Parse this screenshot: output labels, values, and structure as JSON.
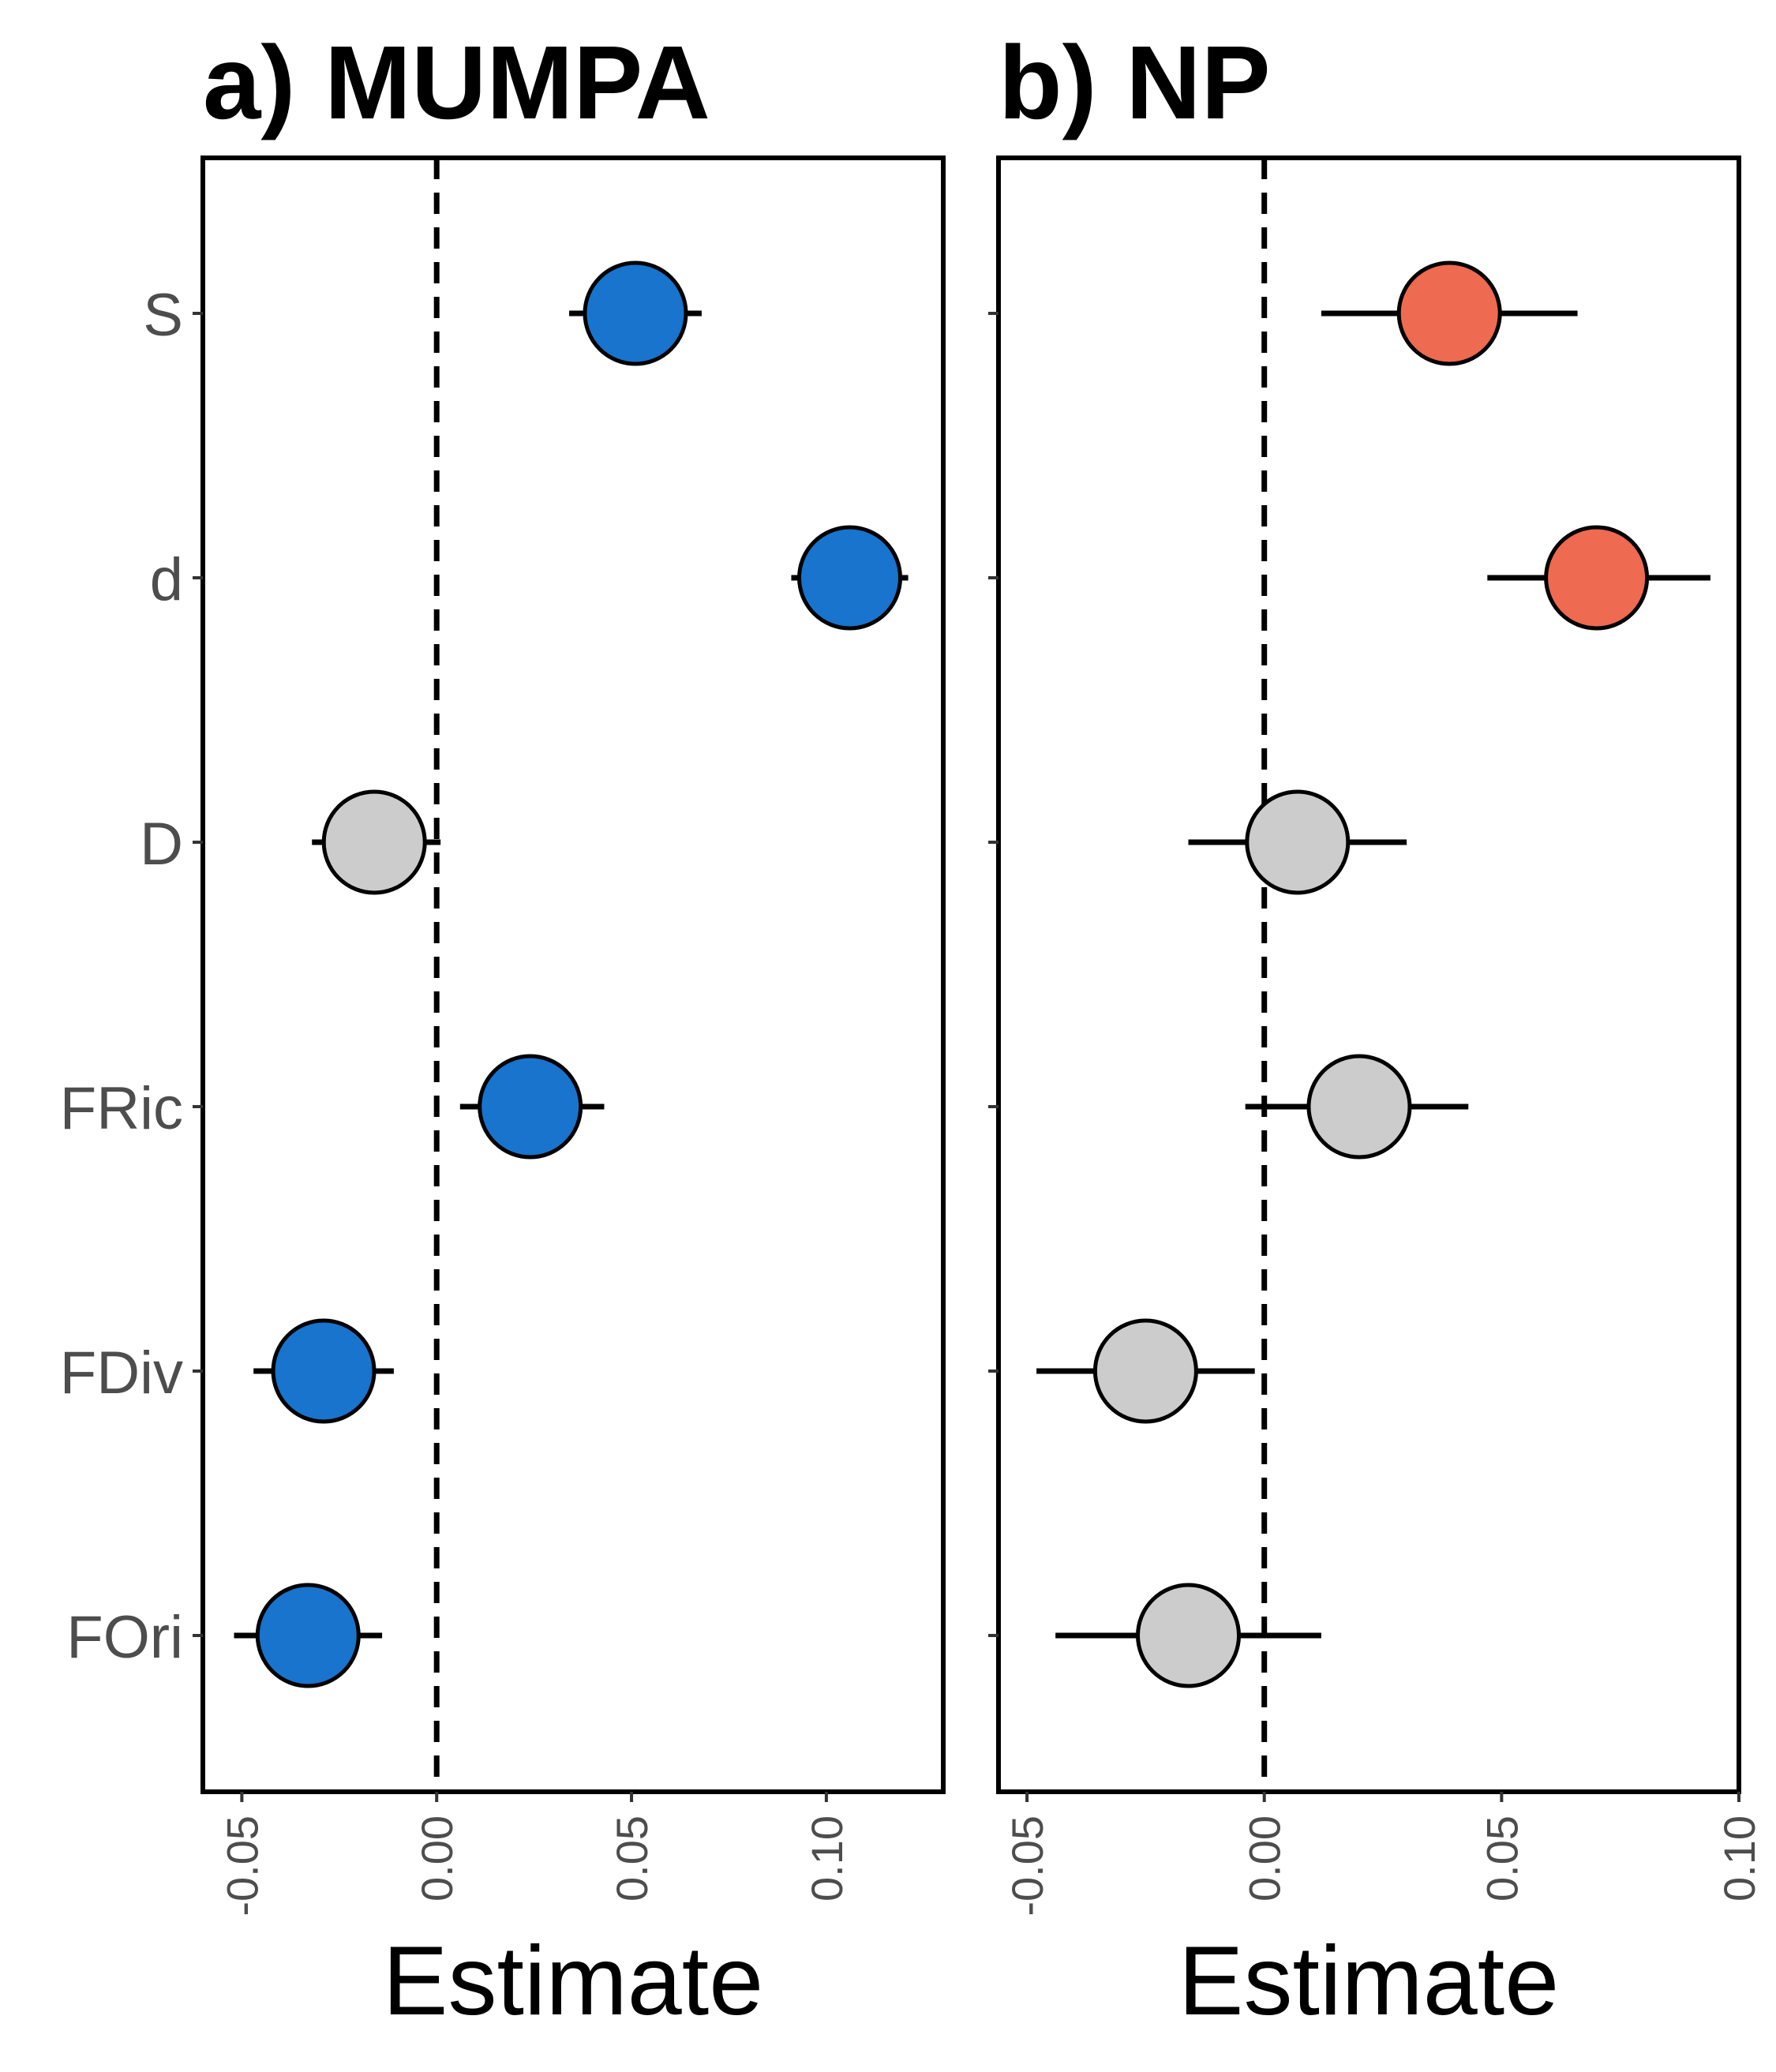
{
  "chart_data": [
    {
      "type": "scatter",
      "title": "a) MUMPA",
      "xlabel": "Estimate",
      "ylabel": "",
      "xlim": [
        -0.06,
        0.13
      ],
      "xticks": [
        -0.05,
        0.0,
        0.05,
        0.1
      ],
      "xtick_labels": [
        "-0.05",
        "0.00",
        "0.05",
        "0.10"
      ],
      "reference_line_x": 0.0,
      "categories": [
        "S",
        "d",
        "D",
        "FRic",
        "FDiv",
        "FOri"
      ],
      "estimate": [
        0.051,
        0.106,
        -0.016,
        0.024,
        -0.029,
        -0.033
      ],
      "ci_low": [
        0.034,
        0.091,
        -0.032,
        0.006,
        -0.047,
        -0.052
      ],
      "ci_high": [
        0.068,
        0.121,
        0.001,
        0.043,
        -0.011,
        -0.014
      ],
      "point_colors": [
        "#1874cd",
        "#1874cd",
        "#cccccc",
        "#1874cd",
        "#1874cd",
        "#1874cd"
      ],
      "grid": false
    },
    {
      "type": "scatter",
      "title": "b) NP",
      "xlabel": "Estimate",
      "ylabel": "",
      "xlim": [
        -0.056,
        0.1
      ],
      "xticks": [
        -0.05,
        0.0,
        0.05,
        0.1
      ],
      "xtick_labels": [
        "-0.05",
        "0.00",
        "0.05",
        "0.10"
      ],
      "reference_line_x": 0.0,
      "categories": [
        "S",
        "d",
        "D",
        "FRic",
        "FDiv",
        "FOri"
      ],
      "estimate": [
        0.039,
        0.07,
        0.007,
        0.02,
        -0.025,
        -0.016
      ],
      "ci_low": [
        0.012,
        0.047,
        -0.016,
        -0.004,
        -0.048,
        -0.044
      ],
      "ci_high": [
        0.066,
        0.094,
        0.03,
        0.043,
        -0.002,
        0.012
      ],
      "point_colors": [
        "#ee6a50",
        "#ee6a50",
        "#cccccc",
        "#cccccc",
        "#cccccc",
        "#cccccc"
      ],
      "grid": false
    }
  ]
}
